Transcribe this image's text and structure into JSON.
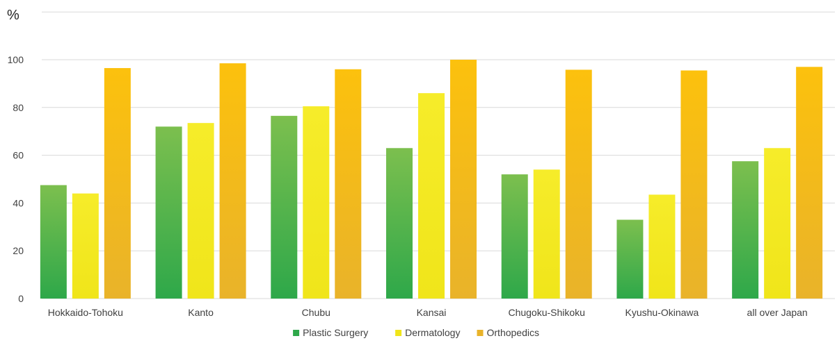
{
  "chart_data": {
    "type": "bar",
    "ylabel": "%",
    "xlabel": "",
    "ylim": [
      0,
      100
    ],
    "yticks": [
      0,
      20,
      40,
      60,
      80,
      100
    ],
    "grid": true,
    "legend_position": "bottom-center",
    "categories": [
      "Hokkaido-Tohoku",
      "Kanto",
      "Chubu",
      "Kansai",
      "Chugoku-Shikoku",
      "Kyushu-Okinawa",
      "all over Japan"
    ],
    "series": [
      {
        "name": "Plastic Surgery",
        "values": [
          47.5,
          72,
          76.5,
          63,
          52,
          33,
          57.5
        ],
        "color": "#2ea84a",
        "color_light": "#7cbf4e"
      },
      {
        "name": "Dermatology",
        "values": [
          44,
          73.5,
          80.5,
          86,
          54,
          43.5,
          63
        ],
        "color": "#f0e51a",
        "color_light": "#f6ec2a"
      },
      {
        "name": "Orthopedics",
        "values": [
          96.5,
          98.5,
          96,
          100,
          95.8,
          95.5,
          97
        ],
        "color": "#e9b32a",
        "color_light": "#fcc10d"
      }
    ]
  }
}
